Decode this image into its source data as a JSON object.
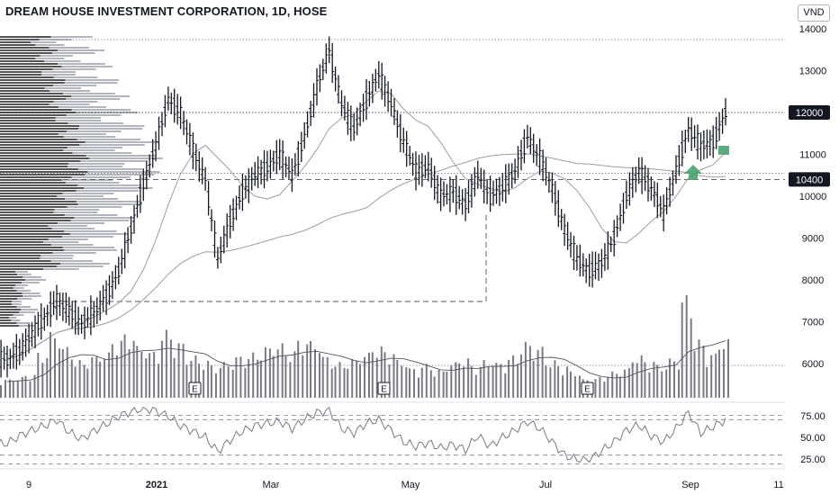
{
  "header": {
    "title": "DREAM HOUSE INVESTMENT CORPORATION, 1D, HOSE",
    "currency": "VND"
  },
  "price_axis": {
    "ticks": [
      "14000",
      "13000",
      "12000",
      "11000",
      "10400",
      "10000",
      "9000",
      "8000",
      "7000",
      "6000"
    ],
    "last_price_label": "12000",
    "marked_level_label": "10400"
  },
  "rsi_axis": {
    "ticks": [
      "75.00",
      "50.00",
      "25.00"
    ]
  },
  "time_axis": {
    "ticks": [
      "9",
      "2021",
      "Mar",
      "May",
      "Jul",
      "Sep",
      "11"
    ]
  },
  "earnings_markers": [
    "E",
    "E",
    "E"
  ],
  "colors": {
    "bars": "#131722",
    "volume": "#787b86",
    "ma_line": "#9e9e9e",
    "rsi_line": "#787b86",
    "profile_dark": "#555555",
    "profile_light": "#b2b5be",
    "signal": "#3f9e6a"
  },
  "chart_data": [
    {
      "type": "line",
      "title": "DREAM HOUSE INVESTMENT CORPORATION, 1D, HOSE",
      "series": [
        {
          "values": [
            6100,
            6300,
            6700,
            7100,
            7500,
            7250,
            6950,
            7200,
            7600,
            8200,
            9200,
            10300,
            11200,
            12300,
            12000,
            11100,
            10400,
            8500,
            9400,
            10100,
            10500,
            10700,
            11000,
            10500,
            11400,
            12600,
            13500,
            12200,
            11600,
            12300,
            12900,
            12200,
            11300,
            10600,
            10700,
            10000,
            10100,
            9800,
            10500,
            10000,
            10200,
            10600,
            11400,
            10900,
            10200,
            9200,
            8500,
            8200,
            8400,
            9000,
            10000,
            10600,
            10200,
            9600,
            10600,
            11600,
            11200,
            11300,
            12000
          ]
        }
      ],
      "ylim": [
        5400,
        14300
      ]
    },
    {
      "type": "bar",
      "series": [
        {
          "values": [
            20,
            22,
            25,
            48,
            70,
            55,
            40,
            45,
            48,
            62,
            68,
            55,
            50,
            72,
            60,
            45,
            40,
            35,
            38,
            45,
            48,
            55,
            58,
            50,
            62,
            60,
            45,
            38,
            42,
            48,
            55,
            50,
            40,
            32,
            36,
            30,
            38,
            42,
            35,
            40,
            38,
            45,
            60,
            55,
            40,
            35,
            28,
            20,
            22,
            28,
            32,
            45,
            40,
            35,
            42,
            110,
            62,
            48,
            62
          ]
        }
      ]
    },
    {
      "type": "line",
      "series": [
        {
          "values": [
            43,
            52,
            58,
            63,
            70,
            56,
            48,
            57,
            65,
            74,
            79,
            83,
            80,
            74,
            63,
            57,
            50,
            34,
            47,
            57,
            63,
            66,
            68,
            60,
            70,
            78,
            80,
            60,
            55,
            66,
            70,
            58,
            45,
            40,
            44,
            38,
            42,
            36,
            52,
            40,
            50,
            58,
            68,
            60,
            45,
            30,
            25,
            24,
            35,
            45,
            58,
            64,
            52,
            45,
            60,
            78,
            55,
            62,
            70
          ]
        }
      ],
      "ylim": [
        20,
        85
      ]
    }
  ]
}
